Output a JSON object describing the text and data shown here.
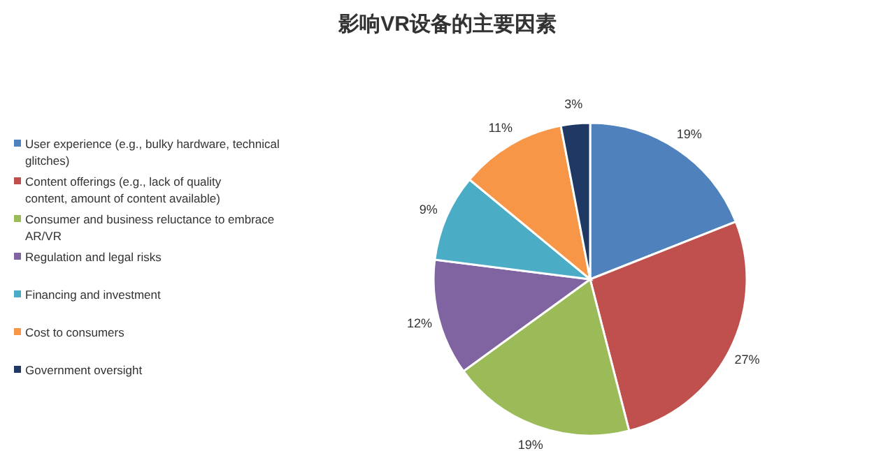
{
  "chart_data": {
    "type": "pie",
    "title": "影响VR设备的主要因素",
    "categories": [
      "User experience (e.g., bulky hardware, technical glitches)",
      "Content offerings (e.g., lack of quality content, amount of content available)",
      "Consumer and business reluctance to embrace AR/VR",
      "Regulation and legal risks",
      "Financing and investment",
      "Cost to consumers",
      "Government oversight"
    ],
    "values": [
      19,
      27,
      19,
      12,
      9,
      11,
      3
    ],
    "colors": [
      "#4f81bd",
      "#c0504d",
      "#9bbb59",
      "#8064a2",
      "#4bacc6",
      "#f79646",
      "#1f3864"
    ],
    "value_labels": [
      "19%",
      "27%",
      "19%",
      "12%",
      "9%",
      "11%",
      "3%"
    ],
    "legend": "left"
  }
}
